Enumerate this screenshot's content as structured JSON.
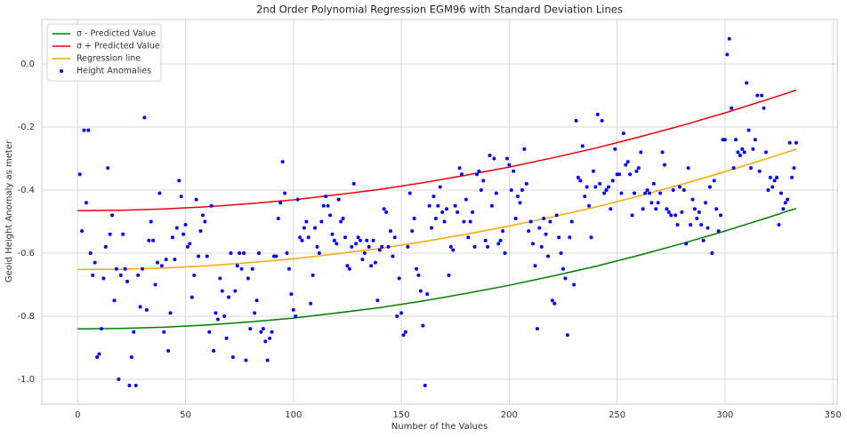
{
  "chart_data": {
    "type": "scatter",
    "title": "2nd Order Polynomial Regression EGM96 with Standard Deviation Lines",
    "xlabel": "Number of the Values",
    "ylabel": "Geoid Height Anomaly as meter",
    "xlim": [
      -16.6,
      352
    ],
    "ylim": [
      -1.079,
      0.141
    ],
    "xticks": [
      0,
      50,
      100,
      150,
      200,
      250,
      300,
      350
    ],
    "yticks": [
      {
        "value": 0,
        "label": "0.0"
      },
      -0.2,
      -0.4,
      -0.6,
      -0.8,
      {
        "value": -1,
        "label": "-1.0"
      }
    ],
    "grid": true,
    "legend": "upper left",
    "lines": [
      {
        "name": "σ - Predicted Value",
        "color": "#008000",
        "x": [
          0,
          20,
          40,
          60,
          80,
          100,
          120,
          140,
          160,
          180,
          200,
          220,
          240,
          260,
          280,
          300,
          320,
          333
        ],
        "values": [
          -0.84,
          -0.839,
          -0.835,
          -0.828,
          -0.818,
          -0.806,
          -0.79,
          -0.773,
          -0.752,
          -0.728,
          -0.702,
          -0.673,
          -0.642,
          -0.607,
          -0.57,
          -0.53,
          -0.487,
          -0.458
        ]
      },
      {
        "name": "σ + Predicted Value",
        "color": "#e8000b",
        "x": [
          0,
          20,
          40,
          60,
          80,
          100,
          120,
          140,
          160,
          180,
          200,
          220,
          240,
          260,
          280,
          300,
          320,
          333
        ],
        "values": [
          -0.465,
          -0.464,
          -0.46,
          -0.453,
          -0.443,
          -0.431,
          -0.415,
          -0.398,
          -0.377,
          -0.353,
          -0.327,
          -0.298,
          -0.267,
          -0.232,
          -0.195,
          -0.155,
          -0.112,
          -0.083
        ]
      },
      {
        "name": "Regression line",
        "color": "#ffa500",
        "x": [
          0,
          20,
          40,
          60,
          80,
          100,
          120,
          140,
          160,
          180,
          200,
          220,
          240,
          260,
          280,
          300,
          320,
          333
        ],
        "values": [
          -0.652,
          -0.651,
          -0.647,
          -0.64,
          -0.63,
          -0.618,
          -0.602,
          -0.585,
          -0.564,
          -0.54,
          -0.514,
          -0.485,
          -0.454,
          -0.419,
          -0.382,
          -0.342,
          -0.299,
          -0.27
        ]
      }
    ],
    "series": [
      {
        "name": "Height Anomalies",
        "color": "#0000ff",
        "x": [
          1,
          2,
          3,
          4,
          5,
          6,
          7,
          8,
          9,
          10,
          11,
          12,
          13,
          14,
          15,
          16,
          17,
          18,
          19,
          20,
          21,
          22,
          23,
          24,
          25,
          26,
          27,
          28,
          29,
          30,
          31,
          32,
          33,
          34,
          35,
          36,
          37,
          38,
          39,
          40,
          41,
          42,
          43,
          44,
          45,
          46,
          47,
          48,
          49,
          50,
          51,
          52,
          53,
          54,
          55,
          56,
          57,
          58,
          59,
          60,
          61,
          62,
          63,
          64,
          65,
          66,
          67,
          68,
          69,
          70,
          71,
          72,
          73,
          74,
          75,
          76,
          77,
          78,
          79,
          80,
          81,
          82,
          83,
          84,
          85,
          86,
          87,
          88,
          89,
          90,
          91,
          92,
          93,
          94,
          95,
          96,
          97,
          98,
          99,
          100,
          101,
          102,
          103,
          104,
          105,
          106,
          107,
          108,
          109,
          110,
          111,
          112,
          113,
          114,
          115,
          116,
          117,
          118,
          119,
          120,
          121,
          122,
          123,
          124,
          125,
          126,
          127,
          128,
          129,
          130,
          131,
          132,
          133,
          134,
          135,
          136,
          137,
          138,
          139,
          140,
          141,
          142,
          143,
          144,
          145,
          146,
          147,
          148,
          149,
          150,
          151,
          152,
          153,
          154,
          155,
          156,
          157,
          158,
          159,
          160,
          161,
          162,
          163,
          164,
          165,
          166,
          167,
          168,
          169,
          170,
          171,
          172,
          173,
          174,
          175,
          176,
          177,
          178,
          179,
          180,
          181,
          182,
          183,
          184,
          185,
          186,
          187,
          188,
          189,
          190,
          191,
          192,
          193,
          194,
          195,
          196,
          197,
          198,
          199,
          200,
          201,
          202,
          203,
          204,
          205,
          206,
          207,
          208,
          209,
          210,
          211,
          212,
          213,
          214,
          215,
          216,
          217,
          218,
          219,
          220,
          221,
          222,
          223,
          224,
          225,
          226,
          227,
          228,
          229,
          230,
          231,
          232,
          233,
          234,
          235,
          236,
          237,
          238,
          239,
          240,
          241,
          242,
          243,
          244,
          245,
          246,
          247,
          248,
          249,
          250,
          251,
          252,
          253,
          254,
          255,
          256,
          257,
          258,
          259,
          260,
          261,
          262,
          263,
          264,
          265,
          266,
          267,
          268,
          269,
          270,
          271,
          272,
          273,
          274,
          275,
          276,
          277,
          278,
          279,
          280,
          281,
          282,
          283,
          284,
          285,
          286,
          287,
          288,
          289,
          290,
          291,
          292,
          293,
          294,
          295,
          296,
          297,
          298,
          299,
          300,
          301,
          302,
          303,
          304,
          305,
          306,
          307,
          308,
          309,
          310,
          311,
          312,
          313,
          314,
          315,
          316,
          317,
          318,
          319,
          320,
          321,
          322,
          323,
          324,
          325,
          326,
          327,
          328,
          329,
          330,
          331,
          332,
          333
        ],
        "values": [
          -0.35,
          -0.53,
          -0.21,
          -0.44,
          -0.21,
          -0.6,
          -0.67,
          -0.63,
          -0.93,
          -0.92,
          -0.84,
          -0.68,
          -0.58,
          -0.33,
          -0.54,
          -0.48,
          -0.75,
          -0.65,
          -1.0,
          -0.67,
          -0.54,
          -0.65,
          -0.69,
          -1.02,
          -0.93,
          -0.85,
          -1.02,
          -0.67,
          -0.77,
          -0.65,
          -0.17,
          -0.78,
          -0.56,
          -0.5,
          -0.56,
          -0.7,
          -0.63,
          -0.41,
          -0.64,
          -0.85,
          -0.62,
          -0.91,
          -0.79,
          -0.55,
          -0.62,
          -0.52,
          -0.37,
          -0.42,
          -0.54,
          -0.51,
          -0.58,
          -0.57,
          -0.74,
          -0.67,
          -0.43,
          -0.61,
          -0.53,
          -0.48,
          -0.5,
          -0.61,
          -0.85,
          -0.45,
          -0.91,
          -0.79,
          -0.81,
          -0.68,
          -0.72,
          -0.8,
          -0.87,
          -0.74,
          -0.6,
          -0.93,
          -0.72,
          -0.64,
          -0.6,
          -0.65,
          -0.6,
          -0.94,
          -0.68,
          -0.84,
          -0.65,
          -0.79,
          -0.75,
          -0.6,
          -0.85,
          -0.84,
          -0.88,
          -0.94,
          -0.87,
          -0.85,
          -0.61,
          -0.61,
          -0.49,
          -0.44,
          -0.31,
          -0.41,
          -0.6,
          -0.65,
          -0.73,
          -0.78,
          -0.8,
          -0.43,
          -0.55,
          -0.56,
          -0.52,
          -0.5,
          -0.55,
          -0.76,
          -0.67,
          -0.52,
          -0.58,
          -0.6,
          -0.5,
          -0.45,
          -0.42,
          -0.45,
          -0.48,
          -0.54,
          -0.56,
          -0.57,
          -0.43,
          -0.5,
          -0.49,
          -0.55,
          -0.64,
          -0.65,
          -0.58,
          -0.38,
          -0.57,
          -0.55,
          -0.56,
          -0.62,
          -0.6,
          -0.56,
          -0.58,
          -0.64,
          -0.56,
          -0.63,
          -0.75,
          -0.59,
          -0.58,
          -0.46,
          -0.47,
          -0.58,
          -0.53,
          -0.61,
          -0.55,
          -0.8,
          -0.68,
          -0.79,
          -0.86,
          -0.85,
          -0.58,
          -0.41,
          -0.53,
          -0.49,
          -0.65,
          -0.67,
          -0.72,
          -0.83,
          -1.02,
          -0.73,
          -0.45,
          -0.52,
          -0.42,
          -0.49,
          -0.45,
          -0.39,
          -0.47,
          -0.5,
          -0.46,
          -0.67,
          -0.58,
          -0.59,
          -0.45,
          -0.47,
          -0.33,
          -0.35,
          -0.5,
          -0.43,
          -0.55,
          -0.5,
          -0.47,
          -0.58,
          -0.35,
          -0.34,
          -0.4,
          -0.37,
          -0.56,
          -0.58,
          -0.29,
          -0.45,
          -0.3,
          -0.41,
          -0.57,
          -0.56,
          -0.53,
          -0.6,
          -0.3,
          -0.32,
          -0.4,
          -0.34,
          -0.49,
          -0.42,
          -0.44,
          -0.4,
          -0.27,
          -0.38,
          -0.53,
          -0.5,
          -0.57,
          -0.64,
          -0.84,
          -0.52,
          -0.58,
          -0.49,
          -0.54,
          -0.61,
          -0.5,
          -0.75,
          -0.76,
          -0.48,
          -0.55,
          -0.6,
          -0.65,
          -0.68,
          -0.86,
          -0.55,
          -0.5,
          -0.7,
          -0.18,
          -0.36,
          -0.37,
          -0.26,
          -0.42,
          -0.39,
          -0.45,
          -0.55,
          -0.34,
          -0.39,
          -0.16,
          -0.38,
          -0.18,
          -0.41,
          -0.4,
          -0.39,
          -0.46,
          -0.37,
          -0.27,
          -0.35,
          -0.35,
          -0.41,
          -0.22,
          -0.32,
          -0.31,
          -0.35,
          -0.48,
          -0.41,
          -0.34,
          -0.33,
          -0.28,
          -0.46,
          -0.41,
          -0.4,
          -0.41,
          -0.44,
          -0.38,
          -0.46,
          -0.44,
          -0.41,
          -0.28,
          -0.32,
          -0.46,
          -0.47,
          -0.48,
          -0.4,
          -0.48,
          -0.51,
          -0.39,
          -0.47,
          -0.4,
          -0.57,
          -0.33,
          -0.51,
          -0.43,
          -0.46,
          -0.49,
          -0.47,
          -0.51,
          -0.56,
          -0.44,
          -0.52,
          -0.39,
          -0.6,
          -0.37,
          -0.46,
          -0.53,
          -0.48,
          -0.24,
          -0.24,
          0.03,
          0.08,
          -0.14,
          -0.33,
          -0.24,
          -0.28,
          -0.29,
          -0.27,
          -0.28,
          -0.06,
          -0.21,
          -0.33,
          -0.27,
          -0.24,
          -0.1,
          -0.34,
          -0.1,
          -0.14,
          -0.28,
          -0.4,
          -0.36,
          -0.39,
          -0.37,
          -0.36,
          -0.51,
          -0.41,
          -0.46,
          -0.44,
          -0.43,
          -0.25,
          -0.36,
          -0.33,
          -0.25
        ]
      }
    ]
  }
}
